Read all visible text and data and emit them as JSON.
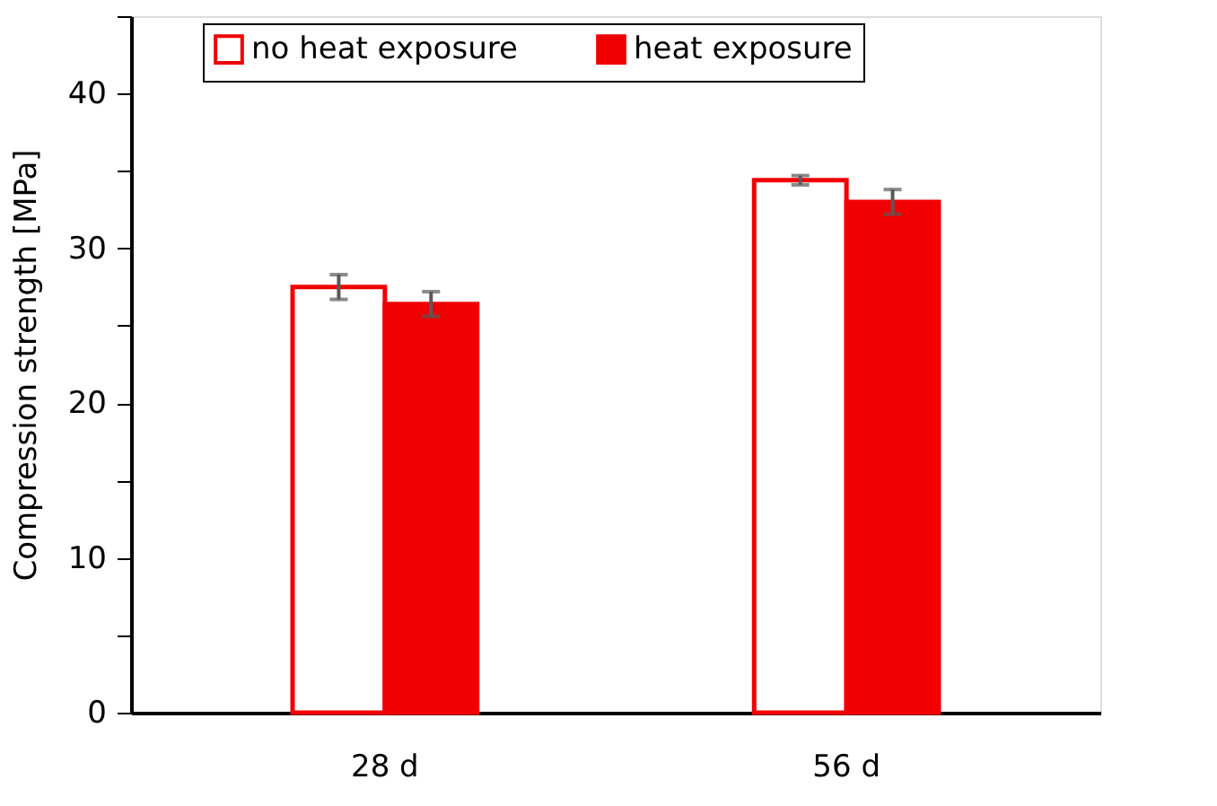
{
  "chart_data": {
    "type": "bar",
    "ylabel": "Compression strength [MPa]",
    "categories": [
      "28 d",
      "56 d"
    ],
    "series": [
      {
        "name": "no heat exposure",
        "color": "#f00000",
        "values": [
          27.5,
          34.4
        ],
        "errors": [
          0.8,
          0.3
        ]
      },
      {
        "name": "heat exposure",
        "color": "#f00000",
        "values": [
          26.4,
          33.0
        ],
        "errors": [
          0.8,
          0.8
        ]
      }
    ],
    "ylim": [
      0,
      45
    ],
    "yticks": [
      0,
      {
        "value": 5,
        "label": null
      },
      10,
      {
        "value": 15,
        "label": null
      },
      20,
      {
        "value": 25,
        "label": null
      },
      30,
      {
        "value": 35,
        "label": null
      },
      40,
      {
        "value": 45,
        "label": null
      }
    ],
    "grid": false,
    "legend": "top"
  }
}
